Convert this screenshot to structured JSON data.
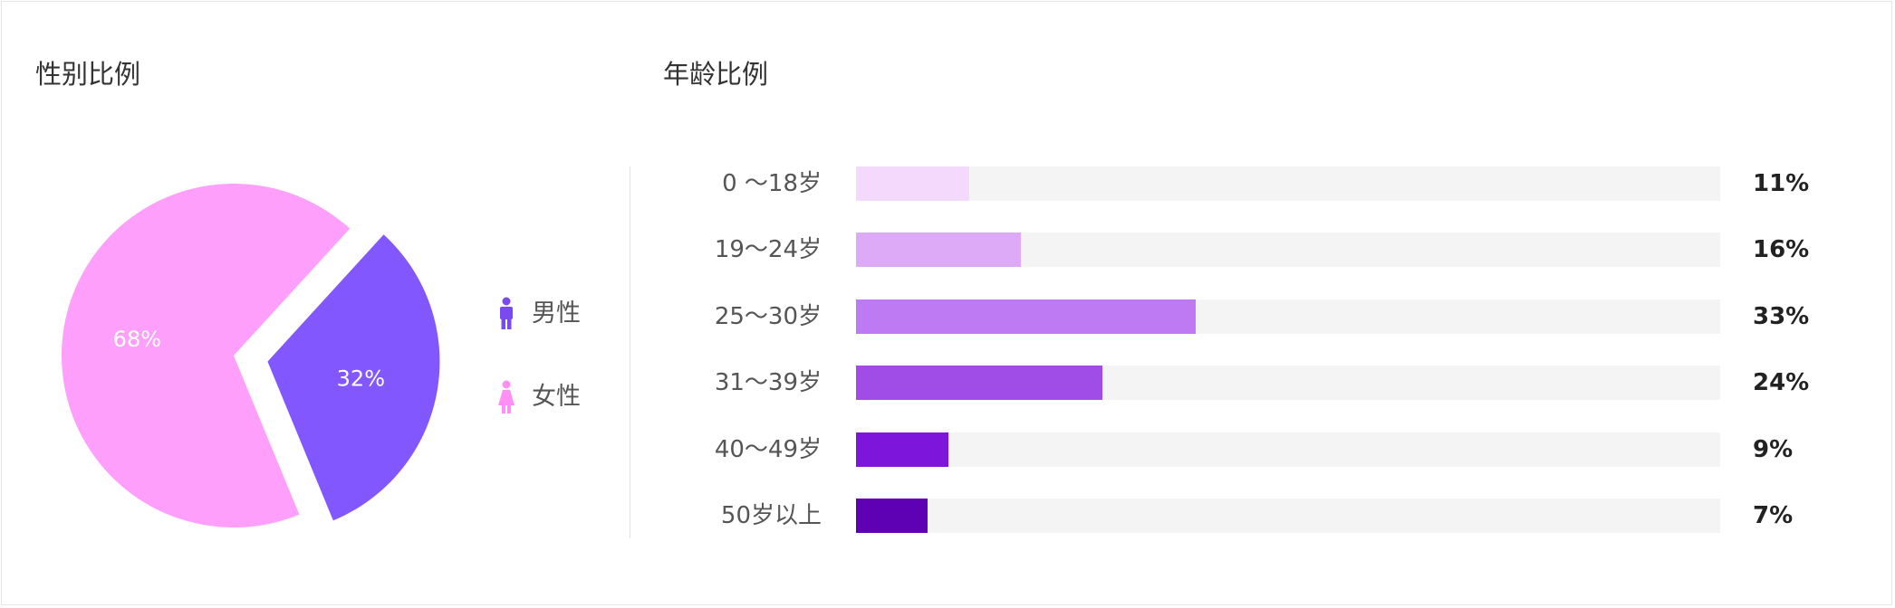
{
  "chart_data": [
    {
      "type": "pie",
      "title": "性别比例",
      "slices": [
        {
          "name": "男性",
          "value": 32,
          "label": "32%",
          "color": "#8257fe",
          "exploded": true
        },
        {
          "name": "女性",
          "value": 68,
          "label": "68%",
          "color": "#ff9ffc",
          "exploded": false
        }
      ],
      "legend": {
        "placement": "right",
        "items": [
          {
            "label": "男性",
            "icon": "male-person-icon",
            "color": "#7a49f0"
          },
          {
            "label": "女性",
            "icon": "female-person-icon",
            "color": "#ff8ff5"
          }
        ]
      }
    },
    {
      "type": "bar",
      "orientation": "horizontal",
      "title": "年龄比例",
      "categories": [
        "0 ～18岁",
        "19～24岁",
        "25～30岁",
        "31～39岁",
        "40～49岁",
        "50岁以上"
      ],
      "values": [
        11,
        16,
        33,
        24,
        9,
        7
      ],
      "value_labels": [
        "11%",
        "16%",
        "33%",
        "24%",
        "9%",
        "7%"
      ],
      "colors": [
        "#f4d9fc",
        "#ddaaf8",
        "#bd7af3",
        "#a04de8",
        "#7e15db",
        "#5e00b3"
      ],
      "xlim": [
        0,
        100
      ],
      "track_color": "#f4f4f4"
    }
  ]
}
